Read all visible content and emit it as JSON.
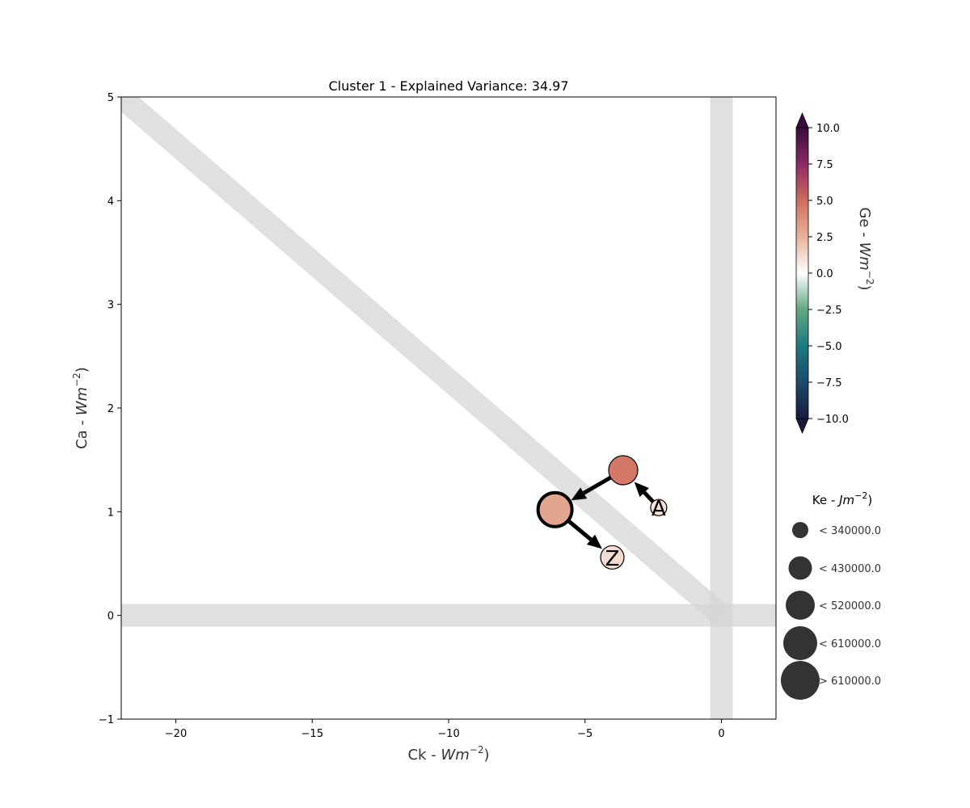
{
  "chart_data": {
    "type": "scatter",
    "title": "Cluster 1 - Explained Variance: 34.97",
    "xlabel": "Ck - ",
    "xlabel_unit": "Wm",
    "xlabel_exp": "−2",
    "xlabel_close": ")",
    "ylabel": "Ca - ",
    "ylabel_unit": "Wm",
    "ylabel_exp": "−2",
    "ylabel_close": ")",
    "xlim": [
      -22,
      2
    ],
    "ylim": [
      -1,
      5
    ],
    "xticks": [
      -20,
      -15,
      -10,
      -5,
      0
    ],
    "xtick_labels": [
      "−20",
      "−15",
      "−10",
      "−5",
      "0"
    ],
    "yticks": [
      -1,
      0,
      1,
      2,
      3,
      4,
      5
    ],
    "ytick_labels": [
      "−1",
      "0",
      "1",
      "2",
      "3",
      "4",
      "5"
    ],
    "grid": false,
    "reference_lines": [
      {
        "kind": "horizontal",
        "y": 0,
        "color": "#d6d6d6"
      },
      {
        "kind": "vertical",
        "x": 0,
        "color": "#d6d6d6"
      },
      {
        "kind": "diagonal",
        "from": [
          -22,
          5
        ],
        "to": [
          0,
          0
        ],
        "color": "#d6d6d6"
      }
    ],
    "points": [
      {
        "x": -2.3,
        "y": 1.04,
        "ge": 1.0,
        "ke_class": 0,
        "label": "A",
        "bold": false
      },
      {
        "x": -3.6,
        "y": 1.4,
        "ge": 4.6,
        "ke_class": 2,
        "label": "",
        "bold": false
      },
      {
        "x": -6.1,
        "y": 1.02,
        "ge": 3.0,
        "ke_class": 3,
        "label": "",
        "bold": true
      },
      {
        "x": -4.0,
        "y": 0.56,
        "ge": 1.2,
        "ke_class": 1,
        "label": "Z",
        "bold": false
      }
    ],
    "arrows": [
      {
        "from": 0,
        "to": 1
      },
      {
        "from": 1,
        "to": 2
      },
      {
        "from": 2,
        "to": 3
      }
    ],
    "colorbar": {
      "label": "Ge - ",
      "label_unit": "Wm",
      "label_exp": "−2",
      "label_close": ")",
      "vmin": -10,
      "vmax": 10,
      "ticks": [
        10,
        7.5,
        5,
        2.5,
        0,
        -2.5,
        -5,
        -7.5,
        -10
      ],
      "tick_labels": [
        "10.0",
        "7.5",
        "5.0",
        "2.5",
        "0.0",
        "−2.5",
        "−5.0",
        "−7.5",
        "−10.0"
      ],
      "colormap_stops": [
        "#1a1a3d",
        "#1d4a6b",
        "#1b7a80",
        "#63a682",
        "#ffffff",
        "#e7b39a",
        "#cf6c5f",
        "#8c2a64",
        "#3a0b3d"
      ],
      "extend": "both"
    },
    "size_legend": {
      "title": "Ke - ",
      "title_unit": "Jm",
      "title_exp": "−2",
      "title_close": ")",
      "entries": [
        "< 340000.0",
        "< 430000.0",
        "< 520000.0",
        "< 610000.0",
        "> 610000.0"
      ],
      "marker_color": "#333333"
    }
  }
}
